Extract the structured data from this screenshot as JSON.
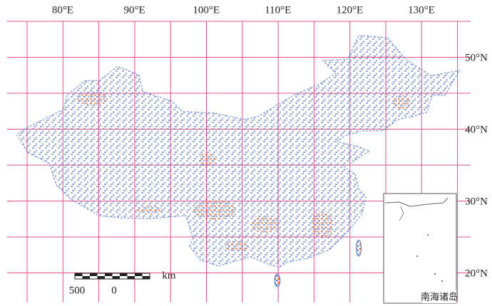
{
  "map": {
    "longitude_labels": [
      "80°E",
      "90°E",
      "100°E",
      "110°E",
      "120°E",
      "130°E"
    ],
    "latitude_labels": [
      "50°N",
      "40°N",
      "30°N",
      "20°N"
    ],
    "scale_bar": {
      "labels": [
        "500",
        "0"
      ],
      "unit": "km"
    },
    "inset": {
      "label": "南海诸岛"
    }
  }
}
